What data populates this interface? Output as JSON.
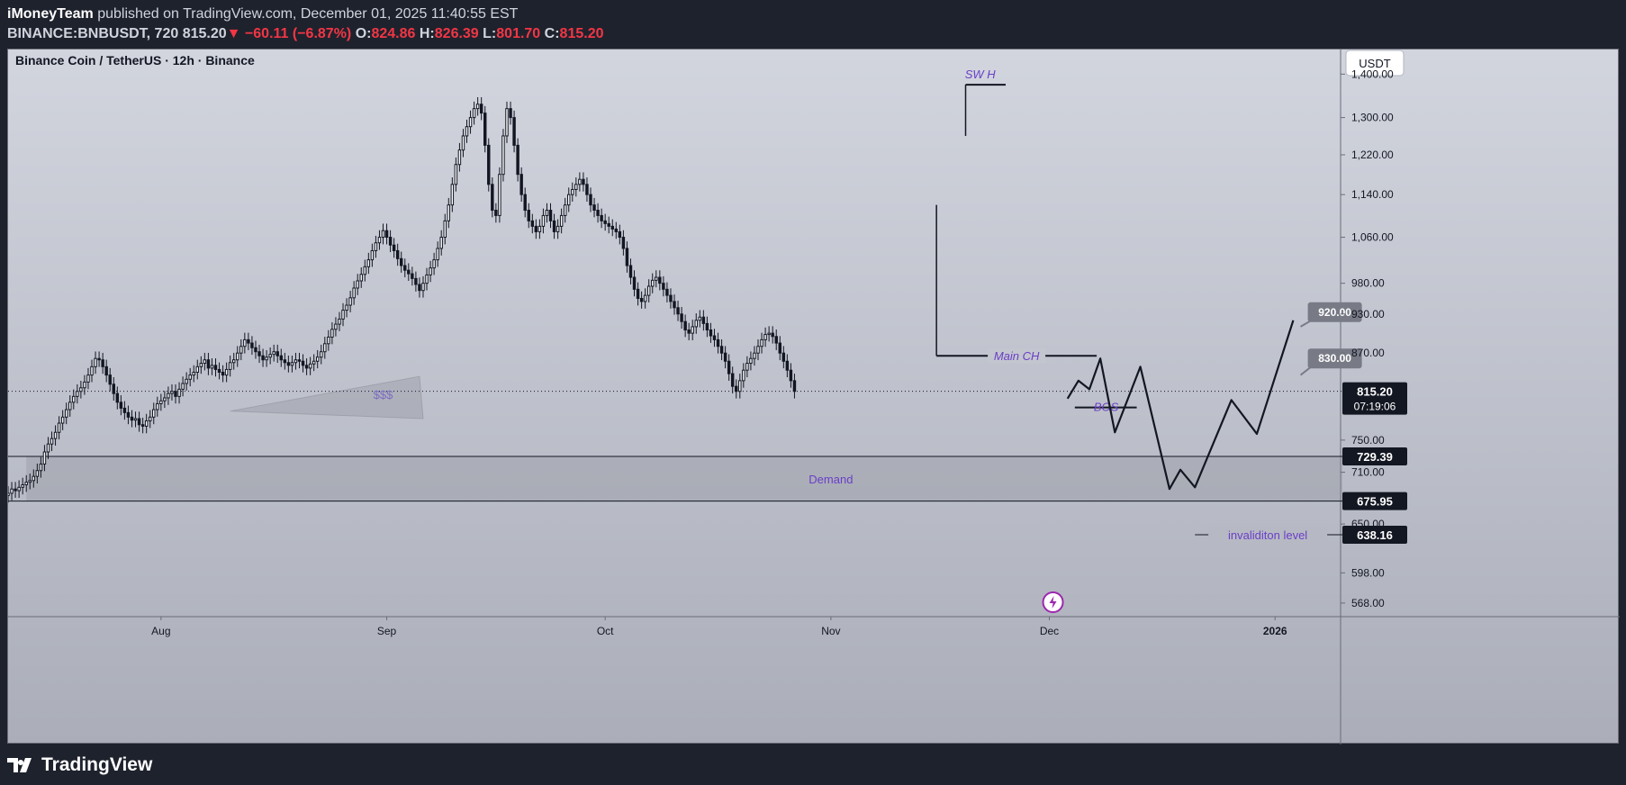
{
  "header": {
    "author": "iMoneyTeam",
    "published": "published on TradingView.com, December 01, 2025 11:40:55 EST",
    "symbol": "BINANCE:BNBUSDT, 720",
    "last": "815.20",
    "arrow": "▼",
    "change": "−60.11 (−6.87%)",
    "open_label": "O:",
    "open": "824.86",
    "high_label": "H:",
    "high": "826.39",
    "low_label": "L:",
    "low": "801.70",
    "close_label": "C:",
    "close": "815.20"
  },
  "chart_data": {
    "type": "candlestick",
    "title": "Binance Coin / TetherUS · 12h · Binance",
    "currency": "USDT",
    "scale": "log",
    "ylim": [
      555,
      1460
    ],
    "y_ticks": [
      "1,400.00",
      "1,300.00",
      "1,220.00",
      "1,140.00",
      "1,060.00",
      "980.00",
      "930.00",
      "870.00",
      "750.00",
      "710.00",
      "650.00",
      "598.00",
      "568.00"
    ],
    "x_ticks": [
      {
        "label": "Aug",
        "t": 16
      },
      {
        "label": "Sep",
        "t": 47
      },
      {
        "label": "Oct",
        "t": 77
      },
      {
        "label": "Nov",
        "t": 108
      },
      {
        "label": "Dec",
        "t": 138
      },
      {
        "label": "2026",
        "t": 169
      }
    ],
    "x_range": [
      -5,
      178
    ],
    "price_series": {
      "start_t": -5,
      "step_days": 0.5,
      "closes": [
        685,
        690,
        688,
        692,
        695,
        698,
        700,
        705,
        712,
        720,
        735,
        745,
        752,
        760,
        772,
        780,
        790,
        800,
        808,
        815,
        820,
        828,
        838,
        850,
        862,
        860,
        850,
        838,
        825,
        812,
        800,
        792,
        786,
        780,
        776,
        778,
        770,
        768,
        775,
        780,
        790,
        798,
        802,
        806,
        812,
        815,
        808,
        818,
        826,
        832,
        838,
        842,
        850,
        855,
        860,
        848,
        852,
        846,
        842,
        838,
        846,
        856,
        860,
        870,
        880,
        890,
        885,
        878,
        872,
        866,
        860,
        864,
        868,
        872,
        866,
        860,
        856,
        852,
        856,
        860,
        858,
        852,
        848,
        854,
        858,
        864,
        872,
        884,
        894,
        906,
        914,
        922,
        936,
        944,
        956,
        972,
        984,
        995,
        1008,
        1020,
        1036,
        1050,
        1060,
        1072,
        1060,
        1046,
        1036,
        1022,
        1010,
        1002,
        996,
        988,
        978,
        968,
        980,
        994,
        1006,
        1020,
        1040,
        1060,
        1090,
        1120,
        1160,
        1200,
        1230,
        1260,
        1280,
        1300,
        1320,
        1330,
        1310,
        1240,
        1160,
        1110,
        1100,
        1180,
        1260,
        1320,
        1300,
        1240,
        1180,
        1140,
        1110,
        1090,
        1080,
        1070,
        1080,
        1100,
        1110,
        1090,
        1070,
        1080,
        1100,
        1120,
        1140,
        1150,
        1160,
        1170,
        1160,
        1140,
        1120,
        1110,
        1100,
        1090,
        1085,
        1080,
        1075,
        1070,
        1060,
        1040,
        1010,
        990,
        970,
        955,
        950,
        960,
        975,
        985,
        990,
        980,
        970,
        960,
        950,
        940,
        930,
        918,
        905,
        900,
        910,
        920,
        925,
        915,
        905,
        896,
        890,
        880,
        870,
        858,
        840,
        822,
        815,
        830,
        845,
        855,
        862,
        870,
        880,
        890,
        898,
        900,
        895,
        885,
        870,
        858,
        845,
        830,
        815
      ]
    },
    "annotations": [
      {
        "name": "sw-h",
        "text": "SW H",
        "price": 1375
      },
      {
        "name": "main-ch",
        "text": "Main CH",
        "price": 866
      },
      {
        "name": "bos",
        "text": "BOS",
        "price": 793
      },
      {
        "name": "demand",
        "text": "Demand"
      },
      {
        "name": "liquidity",
        "text": "$$$"
      },
      {
        "name": "invalidation",
        "text": "invaliditon level",
        "price": 638.16
      }
    ],
    "demand_zone": {
      "top": 729.39,
      "bottom": 675.95
    },
    "projection": [
      {
        "t": 140.5,
        "p": 805
      },
      {
        "t": 142,
        "p": 830
      },
      {
        "t": 143.5,
        "p": 818
      },
      {
        "t": 145,
        "p": 862
      },
      {
        "t": 147,
        "p": 760
      },
      {
        "t": 150.5,
        "p": 850
      },
      {
        "t": 154.5,
        "p": 690
      },
      {
        "t": 156,
        "p": 713
      },
      {
        "t": 158,
        "p": 692
      },
      {
        "t": 163,
        "p": 803
      },
      {
        "t": 166.5,
        "p": 758
      },
      {
        "t": 171.5,
        "p": 920
      }
    ],
    "target_labels": [
      "920.00",
      "830.00"
    ],
    "price_labels": {
      "current": "815.20",
      "countdown": "07:19:06",
      "demand_top": "729.39",
      "demand_bottom": "675.95",
      "invalidation": "638.16"
    }
  },
  "footer": {
    "brand": "TradingView"
  }
}
